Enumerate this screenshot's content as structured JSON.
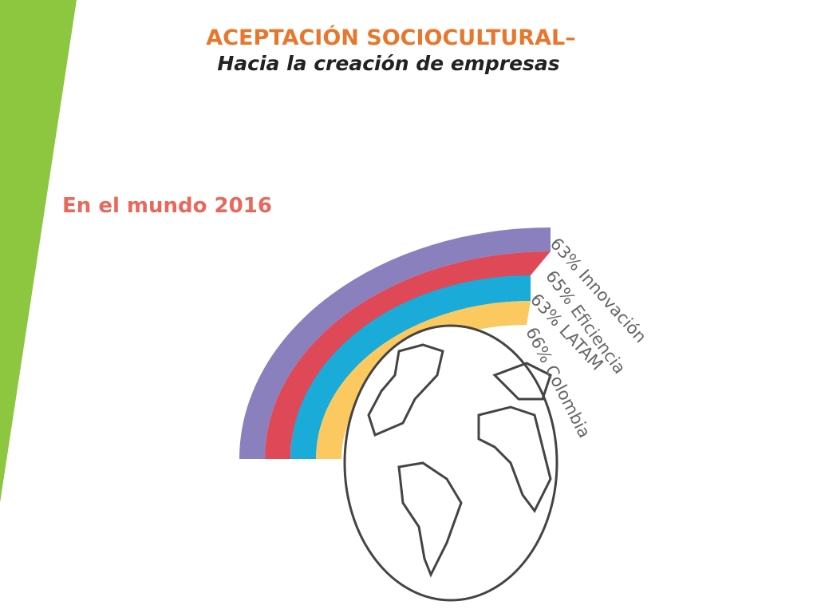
{
  "header": {
    "title": "ACEPTACIÓN SOCIOCULTURAL–",
    "subtitle": "Hacia la creación de empresas"
  },
  "infographic": {
    "heading": "En el mundo 2016",
    "items": [
      {
        "label": "63% Innovación"
      },
      {
        "label": "65% Eficiencia"
      },
      {
        "label": "63% LATAM"
      },
      {
        "label": "66% Colombia"
      }
    ]
  }
}
